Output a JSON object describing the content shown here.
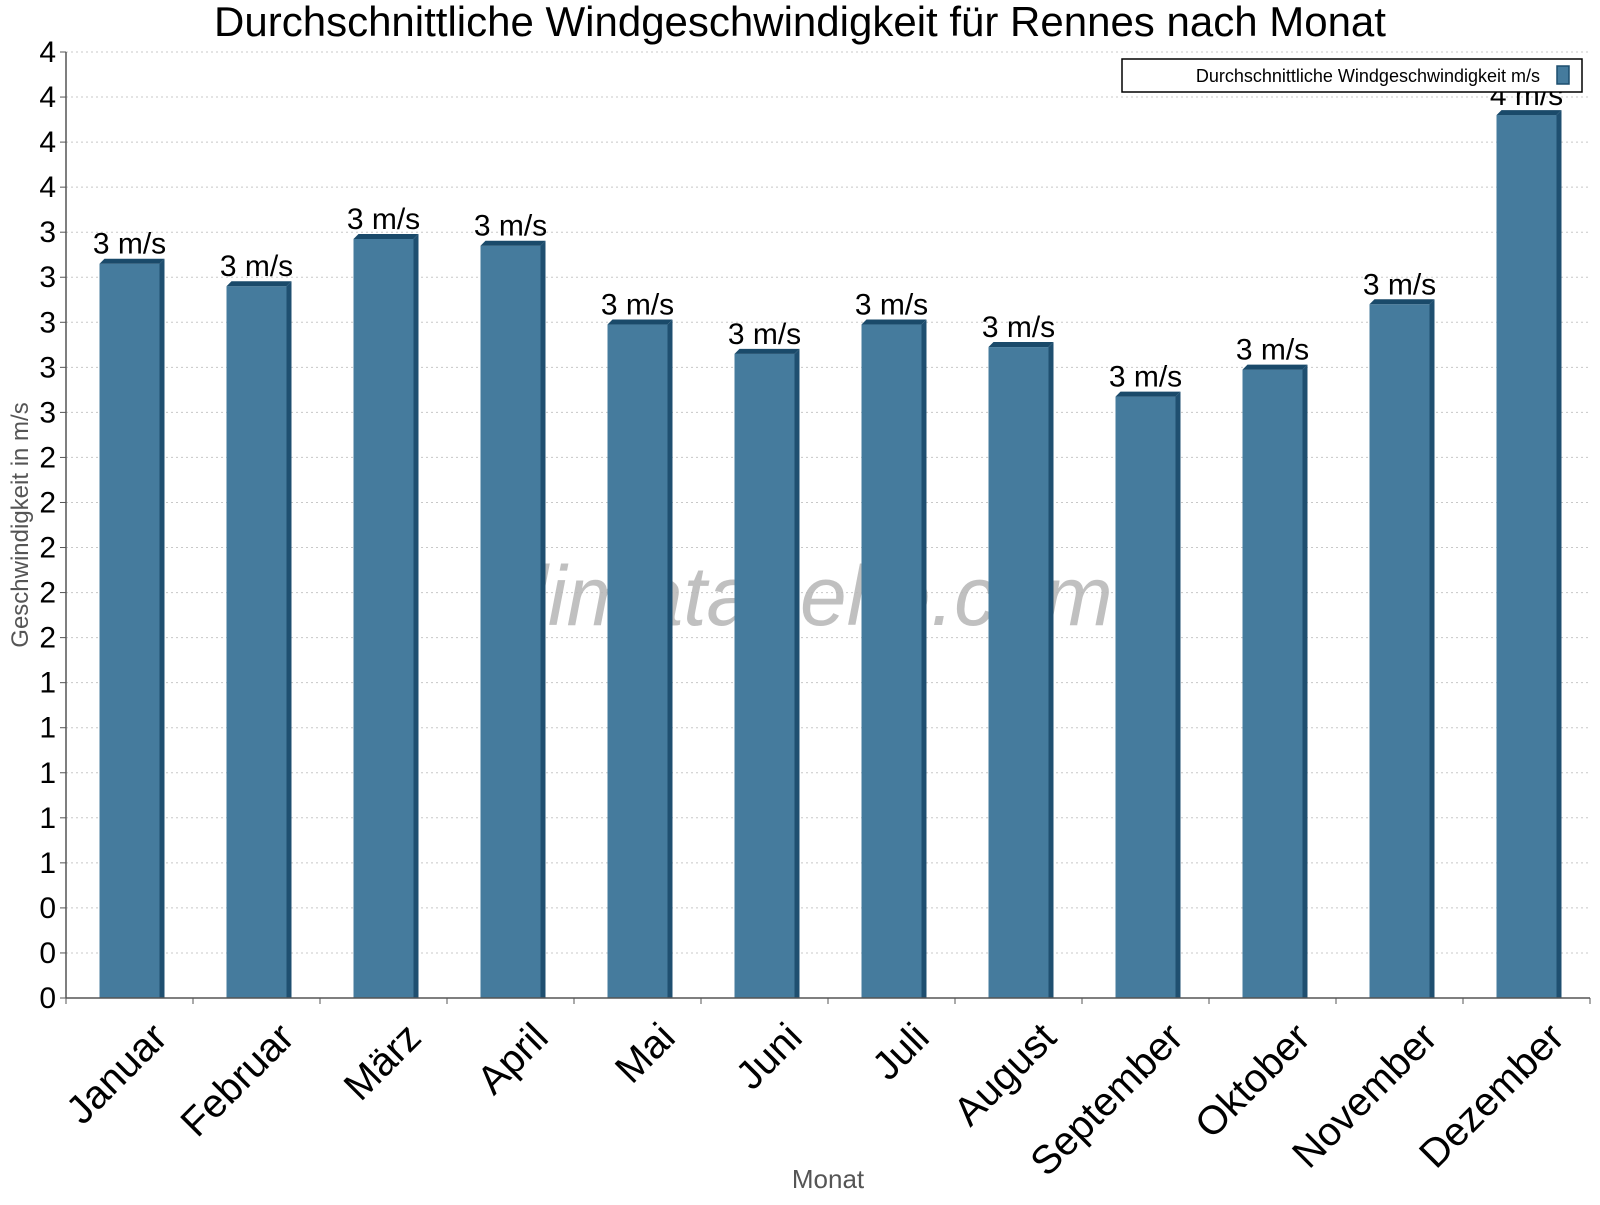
{
  "chart_data": {
    "type": "bar",
    "title": "Durchschnittliche Windgeschwindigkeit für Rennes nach Monat",
    "xlabel": "Monat",
    "ylabel": "Geschwindigkeit in m/s",
    "watermark": "klimatabelle.com",
    "categories": [
      "Januar",
      "Februar",
      "März",
      "April",
      "Mai",
      "Juni",
      "Juli",
      "August",
      "September",
      "Oktober",
      "November",
      "Dezember"
    ],
    "series": [
      {
        "name": "Durchschnittliche Windgeschwindigkeit m/s",
        "color": "#457b9d",
        "values": [
          3.26,
          3.16,
          3.37,
          3.34,
          2.99,
          2.86,
          2.99,
          2.89,
          2.67,
          2.79,
          3.08,
          3.92
        ],
        "data_labels": [
          "3 m/s",
          "3 m/s",
          "3 m/s",
          "3 m/s",
          "3 m/s",
          "3 m/s",
          "3 m/s",
          "3 m/s",
          "3 m/s",
          "3 m/s",
          "3 m/s",
          "4 m/s"
        ]
      }
    ],
    "ylim": [
      0,
      4.2
    ],
    "yticks": [
      0,
      0.2,
      0.4,
      0.6,
      0.8,
      1.0,
      1.2,
      1.4,
      1.6,
      1.8,
      2.0,
      2.2,
      2.4,
      2.6,
      2.8,
      3.0,
      3.2,
      3.4,
      3.6,
      3.8,
      4.0,
      4.2
    ],
    "ytick_labels": [
      "0",
      "0",
      "0",
      "1",
      "1",
      "1",
      "1",
      "1",
      "2",
      "2",
      "2",
      "2",
      "2",
      "3",
      "3",
      "3",
      "3",
      "3",
      "4",
      "4",
      "4",
      "4"
    ],
    "grid": true,
    "legend_position": "top-right"
  }
}
